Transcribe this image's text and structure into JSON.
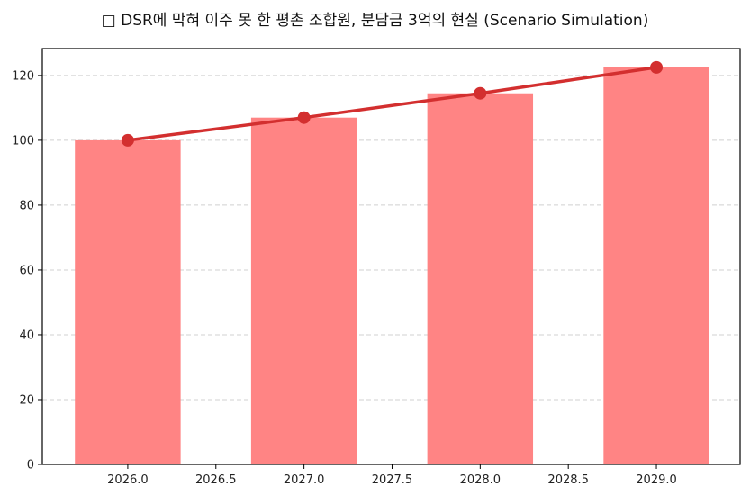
{
  "chart_data": {
    "type": "bar",
    "title": "□ DSR에 막혀 이주 못 한 평촌 조합원, 분담금 3억의 현실 (Scenario Simulation)",
    "xlabel": "",
    "ylabel": "",
    "categories": [
      2026,
      2027,
      2028,
      2029
    ],
    "series": [
      {
        "name": "bar",
        "type": "bar",
        "color": "#ff8484",
        "values": [
          100,
          107,
          114.49,
          122.5
        ]
      },
      {
        "name": "line",
        "type": "line",
        "color": "#d32f2f",
        "marker": "circle",
        "values": [
          100,
          107,
          114.49,
          122.5
        ]
      }
    ],
    "xlim": [
      2025.515,
      2029.475
    ],
    "ylim": [
      0,
      128.3
    ],
    "xticks": [
      "2026.0",
      "2026.5",
      "2027.0",
      "2027.5",
      "2028.0",
      "2028.5",
      "2029.0"
    ],
    "yticks": [
      "0",
      "20",
      "40",
      "60",
      "80",
      "100",
      "120"
    ],
    "grid": {
      "y": true,
      "x": false,
      "style": "dashed"
    },
    "bar_width": 0.6,
    "legend": null
  }
}
